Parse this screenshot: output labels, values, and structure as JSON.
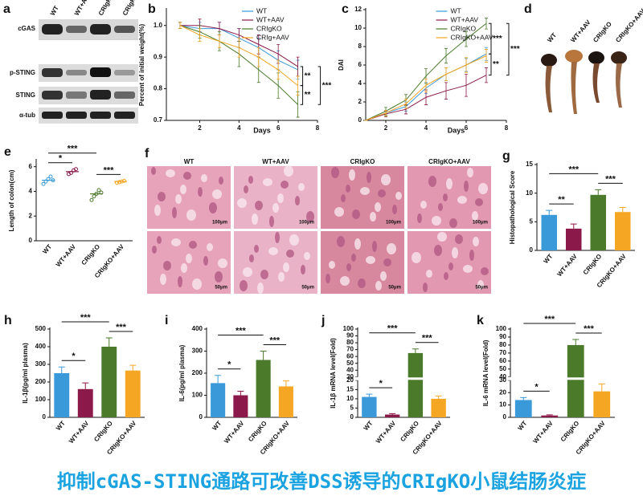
{
  "chart_data": [
    {
      "type": "line",
      "label": "b",
      "ylabel": "Percent of initial weight(%)",
      "xlabel": "Days",
      "x": [
        1,
        2,
        3,
        4,
        5,
        6,
        7
      ],
      "xlim": [
        0.3,
        8
      ],
      "xticks": [
        2,
        4,
        6,
        8
      ],
      "ylim": [
        0.7,
        1.05
      ],
      "yticks": [
        0.7,
        0.8,
        0.9,
        {
          "value": 1,
          "label": "1.0"
        }
      ],
      "series": [
        {
          "name": "WT",
          "color": "#3a9ad9",
          "values": [
            1,
            0.99,
            0.99,
            0.96,
            0.93,
            0.89,
            0.86
          ],
          "errors": [
            0.01,
            0.02,
            0.02,
            0.03,
            0.03,
            0.03,
            0.03
          ]
        },
        {
          "name": "WT+AAV",
          "color": "#8b1a4a",
          "values": [
            1,
            1,
            0.99,
            0.97,
            0.94,
            0.91,
            0.87
          ],
          "errors": [
            0.01,
            0.02,
            0.02,
            0.02,
            0.03,
            0.03,
            0.03
          ]
        },
        {
          "name": "CRIgKO",
          "color": "#4a7a2a",
          "values": [
            1,
            0.98,
            0.95,
            0.91,
            0.86,
            0.81,
            0.75
          ],
          "errors": [
            0.01,
            0.02,
            0.03,
            0.04,
            0.04,
            0.04,
            0.04
          ]
        },
        {
          "name": "CRIg+AAV",
          "color": "#f5a623",
          "values": [
            1,
            0.97,
            0.95,
            0.93,
            0.9,
            0.86,
            0.81
          ],
          "errors": [
            0.01,
            0.02,
            0.02,
            0.03,
            0.03,
            0.03,
            0.03
          ]
        }
      ],
      "annotations": [
        {
          "label": "**",
          "between": [
            "WT+AAV",
            "CRIg+AAV"
          ]
        },
        {
          "label": "**",
          "between": [
            "CRIg+AAV",
            "CRIgKO"
          ]
        },
        {
          "label": "***",
          "between": [
            "WT+AAV",
            "CRIgKO"
          ]
        }
      ]
    },
    {
      "type": "line",
      "label": "c",
      "ylabel": "DAI",
      "xlabel": "Days",
      "x": [
        1,
        2,
        3,
        4,
        5,
        6,
        7
      ],
      "xlim": [
        1,
        8
      ],
      "xticks": [
        2,
        4,
        6,
        8
      ],
      "ylim": [
        0,
        12
      ],
      "yticks": [
        0,
        2,
        4,
        6,
        8,
        10,
        12
      ],
      "series": [
        {
          "name": "WT",
          "color": "#3a9ad9",
          "values": [
            0,
            0.8,
            1.5,
            3.5,
            5,
            6,
            7.2
          ],
          "errors": [
            0,
            0.3,
            0.5,
            0.6,
            0.7,
            0.7,
            0.7
          ]
        },
        {
          "name": "WT+AAV",
          "color": "#8b1a4a",
          "values": [
            0,
            0.7,
            1.2,
            2.5,
            3.2,
            3.8,
            4.9
          ],
          "errors": [
            0,
            0.3,
            0.5,
            0.8,
            0.9,
            1.2,
            0.8
          ]
        },
        {
          "name": "CRIgKO",
          "color": "#4a7a2a",
          "values": [
            0,
            1,
            2.2,
            4.8,
            7,
            8.8,
            10.5
          ],
          "errors": [
            0,
            0.4,
            0.6,
            0.8,
            0.8,
            0.8,
            0.6
          ]
        },
        {
          "name": "CRIgKO+AAV",
          "color": "#f5a623",
          "values": [
            0,
            0.8,
            1.8,
            3.8,
            5,
            6,
            7
          ],
          "errors": [
            0,
            0.3,
            0.5,
            0.7,
            0.7,
            0.8,
            0.7
          ]
        }
      ],
      "annotations": [
        {
          "label": "***",
          "between": [
            "CRIgKO",
            "WT"
          ]
        },
        {
          "label": "**",
          "between": [
            "WT",
            "WT+AAV"
          ]
        },
        {
          "label": "***",
          "between": [
            "CRIgKO",
            "WT+AAV"
          ]
        }
      ]
    },
    {
      "type": "strip",
      "label": "e",
      "ylabel": "Length of colon(cm)",
      "categories": [
        "WT",
        "WT+AAV",
        "CRIgKO",
        "CRIgKO+AAV"
      ],
      "colors": [
        "#3a9ad9",
        "#8b1a4a",
        "#4a7a2a",
        "#f5a623"
      ],
      "values": [
        [
          4.6,
          4.8,
          5.0,
          5.2,
          4.9
        ],
        [
          5.4,
          5.5,
          5.7,
          5.8
        ],
        [
          3.3,
          3.6,
          3.8,
          4.1,
          3.9
        ],
        [
          4.7,
          4.75,
          4.8,
          4.85
        ]
      ],
      "means": [
        4.9,
        5.6,
        3.8,
        4.8
      ],
      "ylim": [
        0,
        6.5
      ],
      "yticks": [
        0,
        2,
        4,
        6
      ],
      "annotations": [
        {
          "label": "*",
          "between": [
            "WT",
            "WT+AAV"
          ]
        },
        {
          "label": "***",
          "between": [
            "WT",
            "CRIgKO"
          ]
        },
        {
          "label": "***",
          "between": [
            "CRIgKO",
            "CRIgKO+AAV"
          ]
        }
      ]
    },
    {
      "type": "bar",
      "label": "g",
      "ylabel": "Histopathological Score",
      "categories": [
        "WT",
        "WT+AAV",
        "CRIgKO",
        "CRIgKO+AAV"
      ],
      "colors": [
        "#3a9ad9",
        "#8b1a4a",
        "#4a7a2a",
        "#f5a623"
      ],
      "values": [
        6.2,
        3.8,
        9.7,
        6.7
      ],
      "errors": [
        0.8,
        0.8,
        0.9,
        0.8
      ],
      "ylim": [
        0,
        15
      ],
      "yticks": [
        0,
        5,
        10,
        15
      ],
      "annotations": [
        {
          "label": "**",
          "between": [
            "WT",
            "WT+AAV"
          ]
        },
        {
          "label": "***",
          "between": [
            "WT",
            "CRIgKO"
          ]
        },
        {
          "label": "***",
          "between": [
            "CRIgKO",
            "CRIgKO+AAV"
          ]
        }
      ]
    },
    {
      "type": "bar",
      "label": "h",
      "ylabel": "IL-1β(pg/ml plasma)",
      "categories": [
        "WT",
        "WT+AAV",
        "CRIgKO",
        "CRIgKO+AAV"
      ],
      "colors": [
        "#3a9ad9",
        "#8b1a4a",
        "#4a7a2a",
        "#f5a623"
      ],
      "values": [
        250,
        160,
        400,
        265
      ],
      "errors": [
        35,
        35,
        50,
        30
      ],
      "ylim": [
        0,
        500
      ],
      "yticks": [
        0,
        100,
        200,
        300,
        400,
        500
      ],
      "annotations": [
        {
          "label": "*",
          "between": [
            "WT",
            "WT+AAV"
          ]
        },
        {
          "label": "***",
          "between": [
            "WT",
            "CRIgKO"
          ]
        },
        {
          "label": "***",
          "between": [
            "CRIgKO",
            "CRIgKO+AAV"
          ]
        }
      ]
    },
    {
      "type": "bar",
      "label": "i",
      "ylabel": "IL-6(pg/ml plasma)",
      "categories": [
        "WT",
        "WT+AAV",
        "CRIgKO",
        "CRIgKO+AAV"
      ],
      "colors": [
        "#3a9ad9",
        "#8b1a4a",
        "#4a7a2a",
        "#f5a623"
      ],
      "values": [
        155,
        100,
        260,
        140
      ],
      "errors": [
        35,
        18,
        40,
        25
      ],
      "ylim": [
        0,
        400
      ],
      "yticks": [
        0,
        100,
        200,
        300,
        400
      ],
      "annotations": [
        {
          "label": "*",
          "between": [
            "WT",
            "WT+AAV"
          ]
        },
        {
          "label": "***",
          "between": [
            "WT",
            "CRIgKO"
          ]
        },
        {
          "label": "***",
          "between": [
            "CRIgKO",
            "CRIgKO+AAV"
          ]
        }
      ]
    },
    {
      "type": "bar",
      "label": "j",
      "ylabel": "IL-1β mRNA level(Fold)",
      "categories": [
        "WT",
        "WT+AAV",
        "CRIgKO",
        "CRIgKO+AAV"
      ],
      "colors": [
        "#3a9ad9",
        "#8b1a4a",
        "#4a7a2a",
        "#f5a623"
      ],
      "values": [
        11,
        1.5,
        65,
        10
      ],
      "errors": [
        1.5,
        0.5,
        6,
        1.5
      ],
      "ylim": [
        0,
        100
      ],
      "ybreak": [
        20,
        30
      ],
      "yticks": [
        0,
        5,
        10,
        15,
        20,
        30,
        40,
        50,
        60,
        70,
        80,
        90,
        100
      ],
      "annotations": [
        {
          "label": "*",
          "between": [
            "WT",
            "WT+AAV"
          ]
        },
        {
          "label": "***",
          "between": [
            "WT",
            "CRIgKO"
          ]
        },
        {
          "label": "***",
          "between": [
            "CRIgKO",
            "CRIgKO+AAV"
          ]
        }
      ]
    },
    {
      "type": "bar",
      "label": "k",
      "ylabel": "IL-6 mRNA level(Fold)",
      "categories": [
        "WT",
        "WT+AAV",
        "CRIgKO",
        "CRIgKO+AAV"
      ],
      "colors": [
        "#3a9ad9",
        "#8b1a4a",
        "#4a7a2a",
        "#f5a623"
      ],
      "values": [
        14,
        1.5,
        80,
        21
      ],
      "errors": [
        2,
        0.5,
        7,
        6
      ],
      "ylim": [
        0,
        100
      ],
      "ybreak": [
        30,
        40
      ],
      "yticks": [
        0,
        10,
        20,
        30,
        40,
        50,
        60,
        70,
        80,
        90,
        100
      ],
      "annotations": [
        {
          "label": "*",
          "between": [
            "WT",
            "WT+AAV"
          ]
        },
        {
          "label": "***",
          "between": [
            "WT",
            "CRIgKO"
          ]
        },
        {
          "label": "***",
          "between": [
            "CRIgKO",
            "CRIgKO+AAV"
          ]
        }
      ]
    }
  ],
  "blot": {
    "label": "a",
    "lanes": [
      "WT",
      "WT+AAV",
      "CRIgKO",
      "CRIgKO+AAV"
    ],
    "rows": [
      "cGAS",
      "p-STING",
      "STING",
      "α-tub"
    ]
  },
  "colon": {
    "label": "d",
    "lanes": [
      "WT",
      "WT+AAV",
      "CRIgKO",
      "CRIgKO+AAV"
    ]
  },
  "histology": {
    "label": "f",
    "columns": [
      "WT",
      "WT+AAV",
      "CRIgKO",
      "CRIgKO+AAV"
    ],
    "scale_bars": [
      "100μm",
      "50μm"
    ]
  },
  "caption": "抑制cGAS-STING通路可改善DSS诱导的CRIgKO小鼠结肠炎症"
}
